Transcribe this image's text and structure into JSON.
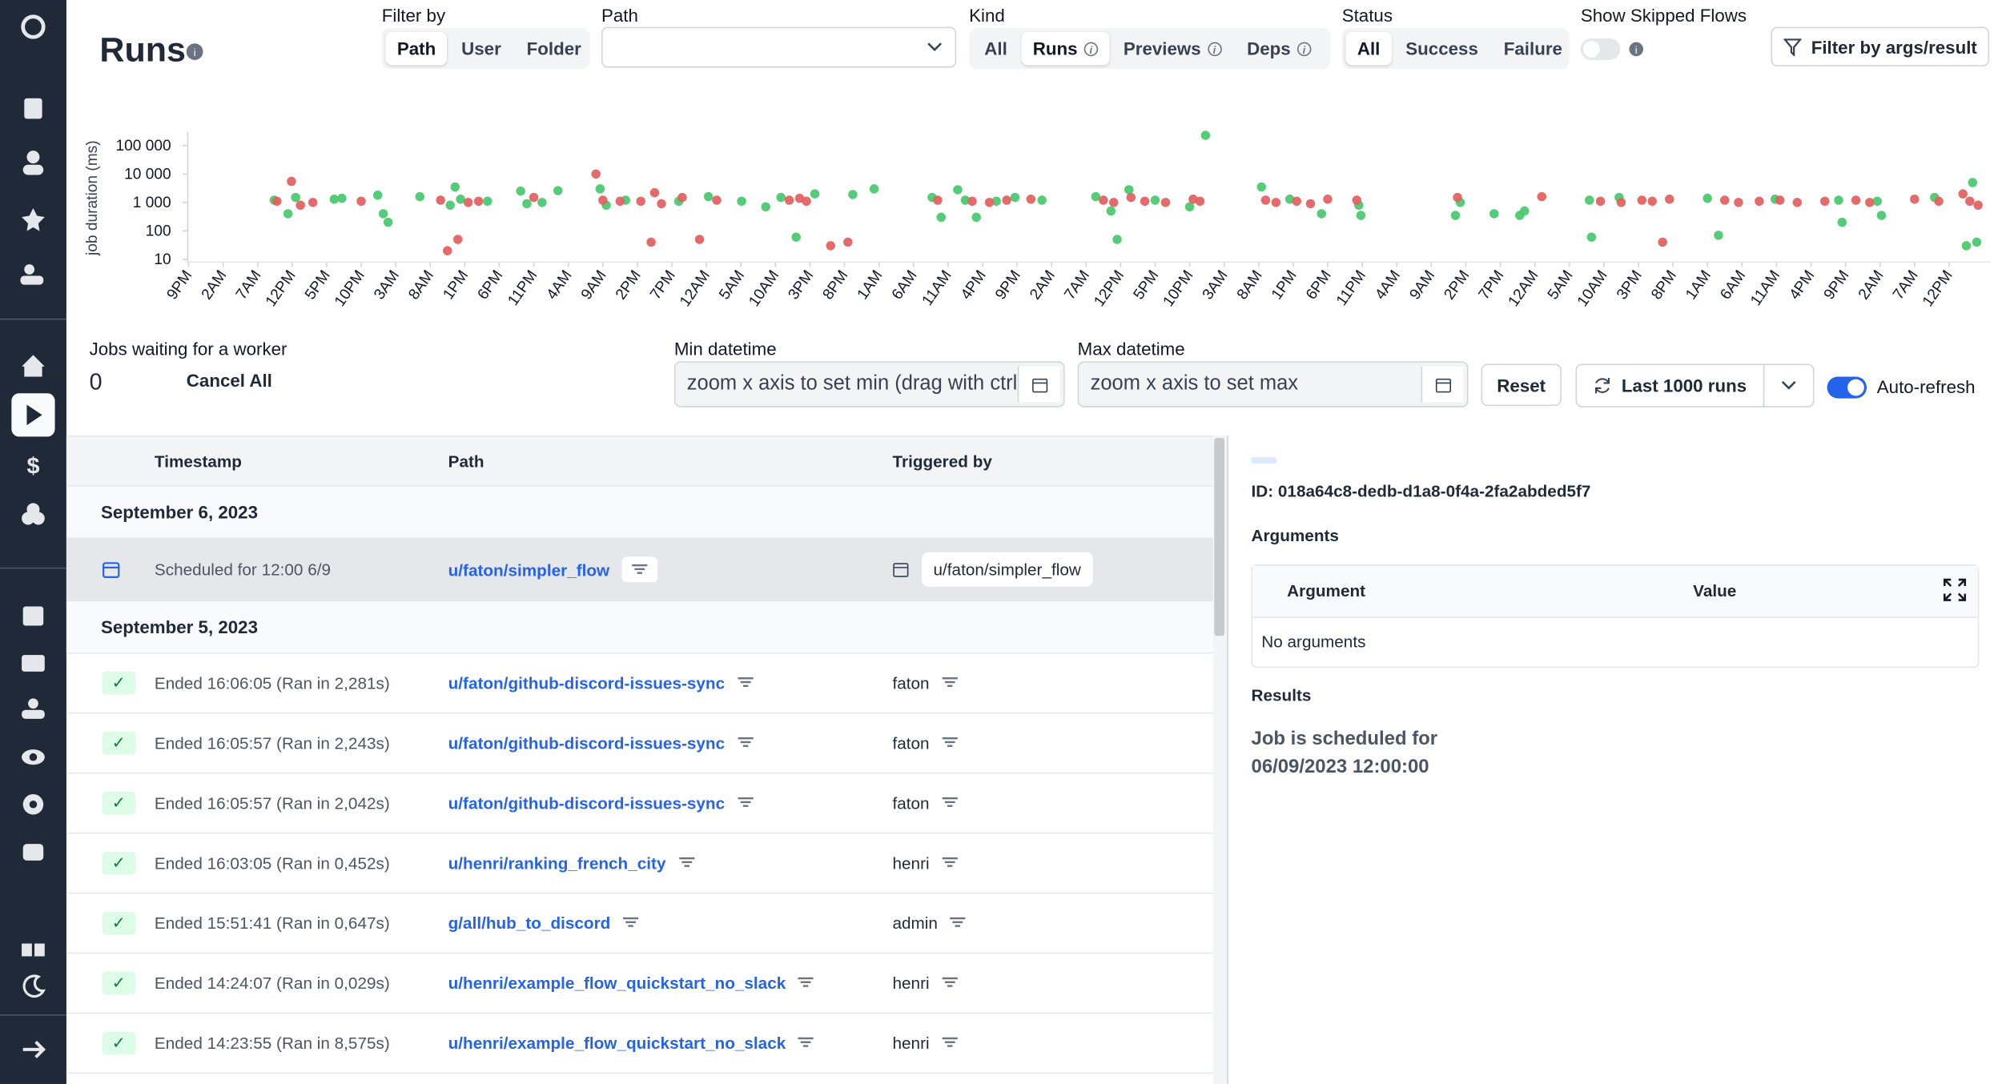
{
  "header": {
    "title": "Runs"
  },
  "filters": {
    "filter_by": {
      "label": "Filter by",
      "options": [
        "Path",
        "User",
        "Folder"
      ]
    },
    "path": {
      "label": "Path"
    },
    "kind": {
      "label": "Kind",
      "options": [
        "All",
        "Runs",
        "Previews",
        "Deps"
      ]
    },
    "status": {
      "label": "Status",
      "options": [
        "All",
        "Success",
        "Failure"
      ]
    },
    "skipped": {
      "label": "Show Skipped Flows"
    },
    "args_button": "Filter by args/result"
  },
  "chart_data": {
    "type": "scatter",
    "y_label": "job duration (ms)",
    "log_y": true,
    "xlim": [
      -0.5,
      261
    ],
    "ylim": [
      8,
      300000
    ],
    "yticks": [
      10,
      100,
      {
        "value": 1000,
        "label": "1 000"
      },
      {
        "value": 10000,
        "label": "10 000"
      },
      {
        "value": 100000,
        "label": "100 000"
      }
    ],
    "xticks": [
      {
        "value": 0,
        "label": "9PM"
      },
      {
        "value": 5,
        "label": "2AM"
      },
      {
        "value": 10,
        "label": "7AM"
      },
      {
        "value": 15,
        "label": "12PM"
      },
      {
        "value": 20,
        "label": "5PM"
      },
      {
        "value": 25,
        "label": "10PM"
      },
      {
        "value": 30,
        "label": "3AM"
      },
      {
        "value": 35,
        "label": "8AM"
      },
      {
        "value": 40,
        "label": "1PM"
      },
      {
        "value": 45,
        "label": "6PM"
      },
      {
        "value": 50,
        "label": "11PM"
      },
      {
        "value": 55,
        "label": "4AM"
      },
      {
        "value": 60,
        "label": "9AM"
      },
      {
        "value": 65,
        "label": "2PM"
      },
      {
        "value": 70,
        "label": "7PM"
      },
      {
        "value": 75,
        "label": "12AM"
      },
      {
        "value": 80,
        "label": "5AM"
      },
      {
        "value": 85,
        "label": "10AM"
      },
      {
        "value": 90,
        "label": "3PM"
      },
      {
        "value": 95,
        "label": "8PM"
      },
      {
        "value": 100,
        "label": "1AM"
      },
      {
        "value": 105,
        "label": "6AM"
      },
      {
        "value": 110,
        "label": "11AM"
      },
      {
        "value": 115,
        "label": "4PM"
      },
      {
        "value": 120,
        "label": "9PM"
      },
      {
        "value": 125,
        "label": "2AM"
      },
      {
        "value": 130,
        "label": "7AM"
      },
      {
        "value": 135,
        "label": "12PM"
      },
      {
        "value": 140,
        "label": "5PM"
      },
      {
        "value": 145,
        "label": "10PM"
      },
      {
        "value": 150,
        "label": "3AM"
      },
      {
        "value": 155,
        "label": "8AM"
      },
      {
        "value": 160,
        "label": "1PM"
      },
      {
        "value": 165,
        "label": "6PM"
      },
      {
        "value": 170,
        "label": "11PM"
      },
      {
        "value": 175,
        "label": "4AM"
      },
      {
        "value": 180,
        "label": "9AM"
      },
      {
        "value": 185,
        "label": "2PM"
      },
      {
        "value": 190,
        "label": "7PM"
      },
      {
        "value": 195,
        "label": "12AM"
      },
      {
        "value": 200,
        "label": "5AM"
      },
      {
        "value": 205,
        "label": "10AM"
      },
      {
        "value": 210,
        "label": "3PM"
      },
      {
        "value": 215,
        "label": "8PM"
      },
      {
        "value": 220,
        "label": "1AM"
      },
      {
        "value": 225,
        "label": "6AM"
      },
      {
        "value": 230,
        "label": "11AM"
      },
      {
        "value": 235,
        "label": "4PM"
      },
      {
        "value": 240,
        "label": "9PM"
      },
      {
        "value": 245,
        "label": "2AM"
      },
      {
        "value": 250,
        "label": "7AM"
      },
      {
        "value": 255,
        "label": "12PM"
      }
    ],
    "series": [
      {
        "color": "#4cc970",
        "x": [
          12.4,
          14.4,
          15.5,
          21.1,
          22.2,
          27.4,
          28.2,
          28.9,
          33.5,
          37.9,
          38.6,
          39.4,
          43.3,
          48.1,
          49.0,
          51.2,
          53.5,
          59.6,
          60.5,
          63.3,
          71.0,
          75.3,
          80.1,
          83.6,
          85.8,
          88.0,
          90.7,
          96.2,
          99.3,
          107.7,
          109.0,
          111.4,
          112.5,
          114.1,
          117.0,
          119.7,
          123.6,
          131.4,
          133.6,
          134.5,
          136.2,
          140.0,
          145.0,
          147.3,
          155.4,
          159.5,
          164.1,
          169.5,
          169.8,
          183.5,
          184.2,
          189.1,
          192.8,
          193.5,
          202.9,
          203.2,
          207.2,
          220.0,
          221.6,
          229.8,
          239.0,
          239.5,
          244.6,
          245.2,
          252.9,
          257.5,
          258.4,
          259.0
        ],
        "values": [
          1200,
          400,
          1500,
          1300,
          1400,
          1800,
          400,
          200,
          1600,
          800,
          3500,
          1300,
          1100,
          2500,
          900,
          1000,
          2600,
          3000,
          800,
          1200,
          1100,
          1600,
          1100,
          700,
          1500,
          60,
          2000,
          1900,
          3000,
          1500,
          300,
          2800,
          1200,
          300,
          1100,
          1500,
          1200,
          1600,
          500,
          50,
          2800,
          1200,
          700,
          230000,
          3500,
          1300,
          400,
          800,
          350,
          350,
          1000,
          400,
          350,
          500,
          1200,
          60,
          1500,
          1400,
          70,
          1300,
          1200,
          200,
          1100,
          350,
          1500,
          30,
          5000,
          40
        ]
      },
      {
        "color": "#e46262",
        "x": [
          12.8,
          14.9,
          16.2,
          18.0,
          25.0,
          36.5,
          37.5,
          39.0,
          40.5,
          42.0,
          50.0,
          59.0,
          60.0,
          62.5,
          65.5,
          67.5,
          68.5,
          67.0,
          71.5,
          74.0,
          76.5,
          87.0,
          88.5,
          89.5,
          93.0,
          95.5,
          108.5,
          113.5,
          116.0,
          118.5,
          122.0,
          132.5,
          134.0,
          136.5,
          138.5,
          141.5,
          145.5,
          146.5,
          156.0,
          157.5,
          160.5,
          162.5,
          165.0,
          169.2,
          183.8,
          196.0,
          204.5,
          207.5,
          210.5,
          212.0,
          213.5,
          214.5,
          222.5,
          224.5,
          227.5,
          230.5,
          233.0,
          237.0,
          241.5,
          243.5,
          250.0,
          253.5,
          257.0,
          258.0,
          259.2
        ],
        "values": [
          1100,
          5500,
          800,
          1000,
          1100,
          1200,
          20,
          50,
          1000,
          1100,
          1500,
          10000,
          1200,
          1100,
          1100,
          2200,
          900,
          40,
          1500,
          50,
          1200,
          1200,
          1400,
          1100,
          30,
          40,
          1200,
          1100,
          1000,
          1200,
          1300,
          1200,
          1000,
          1500,
          1100,
          1000,
          1300,
          1100,
          1200,
          1000,
          1100,
          900,
          1300,
          1200,
          1500,
          1600,
          1100,
          1000,
          1200,
          1100,
          40,
          1300,
          1200,
          1000,
          1100,
          1200,
          1000,
          1100,
          1200,
          1000,
          1300,
          1100,
          2000,
          1100,
          800
        ]
      }
    ]
  },
  "queue": {
    "label": "Jobs waiting for a worker",
    "count": 0,
    "cancel": "Cancel All"
  },
  "range": {
    "min_label": "Min datetime",
    "min_placeholder": "zoom x axis to set min (drag with ctrl)",
    "max_label": "Max datetime",
    "max_placeholder": "zoom x axis to set max",
    "reset": "Reset",
    "last_runs": "Last 1000 runs",
    "auto_refresh": "Auto-refresh"
  },
  "table": {
    "headers": [
      "Timestamp",
      "Path",
      "Triggered by"
    ],
    "groups": [
      {
        "date": "September 6, 2023",
        "rows": [
          {
            "timestamp": "Scheduled for 12:00 6/9",
            "path": "u/faton/simpler_flow",
            "triggered_by": "u/faton/simpler_flow"
          }
        ]
      },
      {
        "date": "September 5, 2023",
        "rows": [
          {
            "timestamp": "Ended 16:06:05 (Ran in 2,281s)",
            "path": "u/faton/github-discord-issues-sync",
            "triggered_by": "faton"
          },
          {
            "timestamp": "Ended 16:05:57 (Ran in 2,243s)",
            "path": "u/faton/github-discord-issues-sync",
            "triggered_by": "faton"
          },
          {
            "timestamp": "Ended 16:05:57 (Ran in 2,042s)",
            "path": "u/faton/github-discord-issues-sync",
            "triggered_by": "faton"
          },
          {
            "timestamp": "Ended 16:03:05 (Ran in 0,452s)",
            "path": "u/henri/ranking_french_city",
            "triggered_by": "henri"
          },
          {
            "timestamp": "Ended 15:51:41 (Ran in 0,647s)",
            "path": "g/all/hub_to_discord",
            "triggered_by": "admin"
          },
          {
            "timestamp": "Ended 14:24:07 (Ran in 0,029s)",
            "path": "u/henri/example_flow_quickstart_no_slack",
            "triggered_by": "henri"
          },
          {
            "timestamp": "Ended 14:23:55 (Ran in 8,575s)",
            "path": "u/henri/example_flow_quickstart_no_slack",
            "triggered_by": "henri"
          }
        ]
      }
    ]
  },
  "detail": {
    "id": "ID: 018a64c8-dedb-d1a8-0f4a-2fa2abded5f7",
    "arguments_title": "Arguments",
    "columns": [
      "Argument",
      "Value"
    ],
    "empty": "No arguments",
    "results_title": "Results",
    "result_text": "Job is scheduled for 06/09/2023 12:00:00"
  }
}
